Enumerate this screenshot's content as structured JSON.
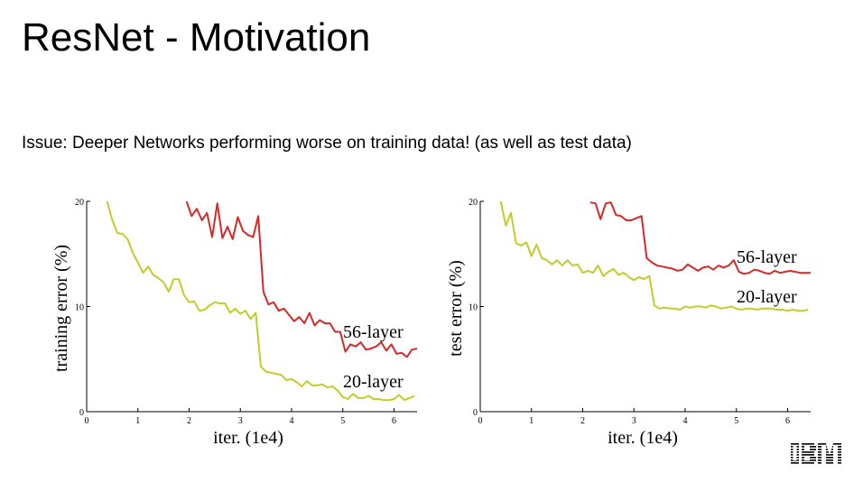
{
  "slide": {
    "title": "ResNet - Motivation",
    "subtitle": "Issue: Deeper Networks performing worse on training data! (as well as test data)"
  },
  "logo": {
    "name": "ibm-logo",
    "color": "#000000"
  },
  "chart_data": [
    {
      "type": "line",
      "xlabel": "iter. (1e4)",
      "ylabel": "training error (%)",
      "xlim": [
        0,
        6.45
      ],
      "ylim": [
        0,
        20
      ],
      "xticks": [
        "0",
        "1",
        "2",
        "3",
        "4",
        "5",
        "6"
      ],
      "yticks": [
        "0",
        "10",
        "20"
      ],
      "series": [
        {
          "name": "56-layer",
          "color": "#d42a2a",
          "x": [
            1.95,
            2.05,
            2.15,
            2.25,
            2.35,
            2.45,
            2.55,
            2.65,
            2.75,
            2.85,
            2.95,
            3.05,
            3.15,
            3.25,
            3.35,
            3.45,
            3.55,
            3.65,
            3.75,
            3.85,
            3.95,
            4.05,
            4.15,
            4.25,
            4.35,
            4.45,
            4.55,
            4.65,
            4.75,
            4.85,
            4.95,
            5.05,
            5.15,
            5.25,
            5.35,
            5.45,
            5.55,
            5.65,
            5.75,
            5.85,
            5.95,
            6.05,
            6.15,
            6.25,
            6.35,
            6.45
          ],
          "y": [
            20.0,
            18.6,
            19.3,
            18.2,
            18.9,
            16.6,
            19.8,
            16.5,
            17.6,
            16.4,
            18.5,
            17.2,
            16.8,
            16.6,
            18.6,
            11.4,
            10.2,
            10.4,
            9.6,
            9.8,
            9.2,
            8.6,
            9.0,
            8.4,
            9.4,
            8.2,
            8.7,
            8.4,
            8.4,
            7.6,
            7.6,
            5.7,
            6.4,
            6.2,
            6.6,
            5.9,
            6.0,
            6.2,
            6.6,
            5.8,
            6.4,
            5.5,
            5.6,
            5.2,
            5.9,
            6.0
          ]
        },
        {
          "name": "20-layer",
          "color": "#c3cc2a",
          "x": [
            0.4,
            0.5,
            0.6,
            0.7,
            0.8,
            0.9,
            1.0,
            1.1,
            1.2,
            1.3,
            1.4,
            1.5,
            1.6,
            1.7,
            1.8,
            1.9,
            2.0,
            2.1,
            2.2,
            2.3,
            2.4,
            2.5,
            2.6,
            2.7,
            2.8,
            2.9,
            3.0,
            3.1,
            3.2,
            3.3,
            3.4,
            3.5,
            3.6,
            3.7,
            3.8,
            3.9,
            4.0,
            4.1,
            4.2,
            4.3,
            4.4,
            4.5,
            4.6,
            4.7,
            4.8,
            4.9,
            5.0,
            5.1,
            5.2,
            5.3,
            5.4,
            5.5,
            5.6,
            5.7,
            5.8,
            5.9,
            6.0,
            6.1,
            6.2,
            6.3,
            6.4
          ],
          "y": [
            20.0,
            18.2,
            17.0,
            16.9,
            16.4,
            15.1,
            14.2,
            13.2,
            13.8,
            13.0,
            12.7,
            12.3,
            11.4,
            12.6,
            12.6,
            11.1,
            10.4,
            10.5,
            9.6,
            9.7,
            10.1,
            10.4,
            10.3,
            10.3,
            9.4,
            9.8,
            9.3,
            9.6,
            8.8,
            9.4,
            4.3,
            3.8,
            3.7,
            3.6,
            3.5,
            3.0,
            3.1,
            2.8,
            2.4,
            2.9,
            2.5,
            2.5,
            2.6,
            2.3,
            2.4,
            2.0,
            1.4,
            1.2,
            1.7,
            1.3,
            1.3,
            1.5,
            1.2,
            1.2,
            1.1,
            1.1,
            1.2,
            1.6,
            1.1,
            1.3,
            1.5
          ]
        }
      ]
    },
    {
      "type": "line",
      "xlabel": "iter. (1e4)",
      "ylabel": "test error (%)",
      "xlim": [
        0,
        6.45
      ],
      "ylim": [
        0,
        20
      ],
      "xticks": [
        "0",
        "1",
        "2",
        "3",
        "4",
        "5",
        "6"
      ],
      "yticks": [
        "0",
        "10",
        "20"
      ],
      "series": [
        {
          "name": "56-layer",
          "color": "#d42a2a",
          "x": [
            2.15,
            2.25,
            2.35,
            2.45,
            2.55,
            2.65,
            2.75,
            2.85,
            2.95,
            3.05,
            3.15,
            3.25,
            3.35,
            3.45,
            3.55,
            3.65,
            3.75,
            3.85,
            3.95,
            4.05,
            4.15,
            4.25,
            4.35,
            4.45,
            4.55,
            4.65,
            4.75,
            4.85,
            4.95,
            5.05,
            5.15,
            5.25,
            5.35,
            5.45,
            5.55,
            5.65,
            5.75,
            5.85,
            5.95,
            6.05,
            6.15,
            6.25,
            6.35,
            6.45
          ],
          "y": [
            19.9,
            19.8,
            18.3,
            19.8,
            19.9,
            18.7,
            18.6,
            18.2,
            18.2,
            18.4,
            18.6,
            14.6,
            14.2,
            13.9,
            13.8,
            13.7,
            13.6,
            13.4,
            13.5,
            14.0,
            13.7,
            13.4,
            13.7,
            13.8,
            13.5,
            13.9,
            13.7,
            13.9,
            14.4,
            13.3,
            13.1,
            13.2,
            13.5,
            13.4,
            13.2,
            13.1,
            13.4,
            13.2,
            13.3,
            13.4,
            13.3,
            13.2,
            13.2,
            13.2
          ]
        },
        {
          "name": "20-layer",
          "color": "#c3cc2a",
          "x": [
            0.4,
            0.5,
            0.6,
            0.7,
            0.8,
            0.9,
            1.0,
            1.1,
            1.2,
            1.3,
            1.4,
            1.5,
            1.6,
            1.7,
            1.8,
            1.9,
            2.0,
            2.1,
            2.2,
            2.3,
            2.4,
            2.5,
            2.6,
            2.7,
            2.8,
            2.9,
            3.0,
            3.1,
            3.2,
            3.3,
            3.4,
            3.5,
            3.6,
            3.7,
            3.8,
            3.9,
            4.0,
            4.1,
            4.2,
            4.3,
            4.4,
            4.5,
            4.6,
            4.7,
            4.8,
            4.9,
            5.0,
            5.1,
            5.2,
            5.3,
            5.4,
            5.5,
            5.6,
            5.7,
            5.8,
            5.9,
            6.0,
            6.1,
            6.2,
            6.3,
            6.4
          ],
          "y": [
            20.0,
            17.7,
            18.9,
            16.0,
            15.8,
            16.1,
            14.8,
            15.9,
            14.6,
            14.4,
            14.0,
            14.4,
            13.9,
            14.4,
            13.9,
            14.0,
            13.2,
            13.4,
            13.2,
            13.9,
            12.9,
            13.3,
            13.6,
            13.0,
            13.2,
            12.8,
            12.5,
            12.8,
            12.6,
            12.9,
            10.1,
            9.8,
            9.9,
            9.8,
            9.8,
            9.7,
            10.0,
            9.9,
            10.0,
            10.0,
            9.9,
            10.1,
            10.0,
            9.8,
            9.9,
            10.0,
            9.8,
            9.7,
            9.8,
            9.8,
            9.7,
            9.8,
            9.8,
            9.8,
            9.7,
            9.7,
            9.6,
            9.7,
            9.6,
            9.6,
            9.7
          ]
        }
      ]
    }
  ]
}
